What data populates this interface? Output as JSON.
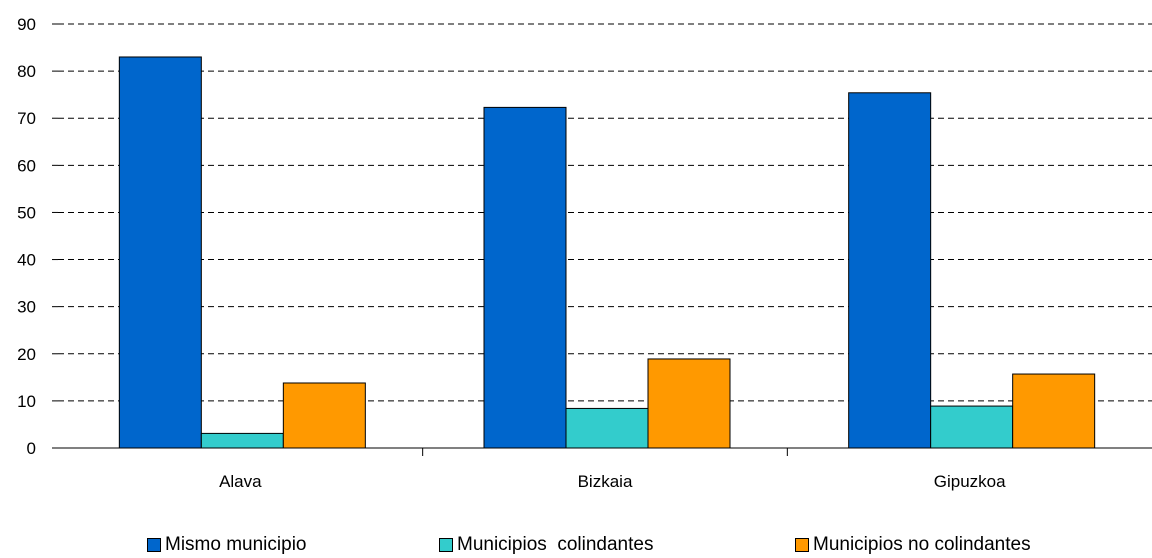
{
  "chart_data": {
    "type": "bar",
    "categories": [
      "Alava",
      "Bizkaia",
      "Gipuzkoa"
    ],
    "series": [
      {
        "name": "Mismo municipio",
        "values": [
          83,
          72.3,
          75.4
        ],
        "color": "#0066CC"
      },
      {
        "name": "Municipios  colindantes",
        "values": [
          3.1,
          8.4,
          8.9
        ],
        "color": "#33CCCC"
      },
      {
        "name": "Municipios no colindantes",
        "values": [
          13.8,
          18.9,
          15.7
        ],
        "color": "#FF9900"
      }
    ],
    "y_ticks": [
      "0",
      "10",
      "20",
      "30",
      "40",
      "50",
      "60",
      "70",
      "80",
      "90"
    ],
    "ylim": [
      0,
      90
    ],
    "grid": "dashed horizontal",
    "legend_position": "bottom",
    "title": "",
    "xlabel": "",
    "ylabel": ""
  }
}
